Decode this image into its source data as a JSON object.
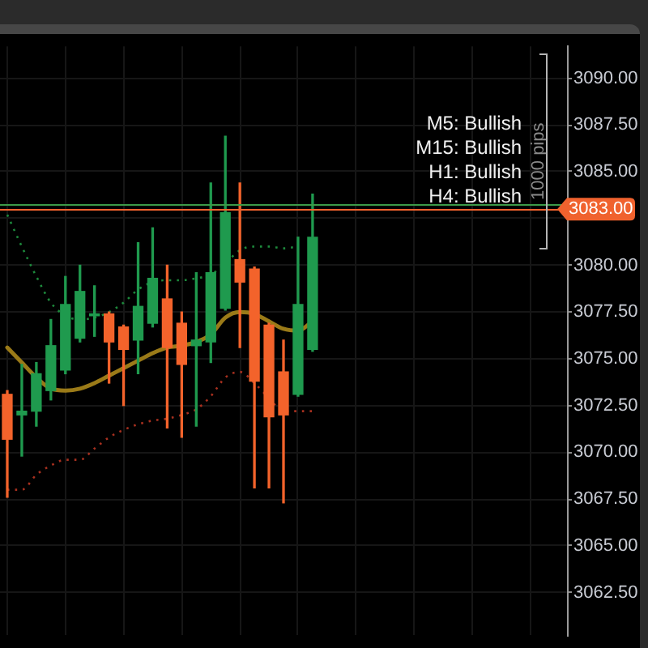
{
  "chart_data": {
    "type": "candlestick",
    "categories": [
      null,
      null,
      null,
      null,
      null,
      null,
      null,
      null,
      null,
      null,
      null,
      null,
      null,
      null,
      null,
      null,
      null,
      null,
      null,
      null,
      null,
      null,
      null,
      null,
      null,
      null,
      null,
      null,
      null,
      null,
      null,
      null,
      null,
      null,
      null,
      null,
      null,
      null,
      null
    ],
    "ohlc": [
      [
        3073.1,
        3073.3,
        3067.6,
        3070.7
      ],
      [
        3072.0,
        3074.7,
        3069.8,
        3072.2
      ],
      [
        3072.2,
        3074.8,
        3071.4,
        3074.2
      ],
      [
        3073.3,
        3077.1,
        3072.8,
        3075.7
      ],
      [
        3074.4,
        3079.4,
        3074.2,
        3077.9
      ],
      [
        3076.1,
        3080.0,
        3075.9,
        3078.6
      ],
      [
        3077.3,
        3078.9,
        3076.2,
        3077.4
      ],
      [
        3077.4,
        3077.5,
        3073.7,
        3075.9
      ],
      [
        3076.7,
        3076.8,
        3072.5,
        3075.5
      ],
      [
        3076.0,
        3081.2,
        3074.2,
        3077.8
      ],
      [
        3076.9,
        3082.0,
        3076.7,
        3079.3
      ],
      [
        3078.2,
        3080.0,
        3071.3,
        3075.6
      ],
      [
        3076.9,
        3077.5,
        3070.8,
        3074.7
      ],
      [
        3075.7,
        3079.6,
        3071.4,
        3076.0
      ],
      [
        3075.9,
        3084.4,
        3074.8,
        3079.6
      ],
      [
        3077.7,
        3086.9,
        3077.6,
        3082.8
      ],
      [
        3080.3,
        3084.4,
        3075.6,
        3079.1
      ],
      [
        3079.8,
        3079.9,
        3068.1,
        3073.8
      ],
      [
        3076.8,
        3076.9,
        3068.1,
        3071.9
      ],
      [
        3074.3,
        3076.0,
        3067.3,
        3072.0
      ],
      [
        3073.1,
        3081.5,
        3073.0,
        3077.9
      ],
      [
        3075.5,
        3083.8,
        3075.4,
        3081.5
      ],
      null,
      null,
      null,
      null,
      null,
      null,
      null,
      null,
      null,
      null,
      null,
      null,
      null,
      null,
      null,
      null,
      null
    ],
    "colors": [
      "#f3632b",
      "#1f9a4e",
      "#1f9a4e",
      "#1f9a4e",
      "#1f9a4e",
      "#1f9a4e",
      "#1f9a4e",
      "#f3632b",
      "#f3632b",
      "#1f9a4e",
      "#1f9a4e",
      "#f3632b",
      "#f3632b",
      "#1f9a4e",
      "#1f9a4e",
      "#1f9a4e",
      "#f3632b",
      "#f3632b",
      "#f3632b",
      "#f3632b",
      "#1f9a4e",
      "#1f9a4e",
      null,
      null,
      null,
      null,
      null,
      null,
      null,
      null,
      null,
      null,
      null,
      null,
      null,
      null,
      null,
      null,
      null
    ],
    "series": [
      {
        "type": "line",
        "color": "#9a7a18",
        "line_style": "solid",
        "values": [
          3075.6,
          3074.8,
          3074.0,
          3073.4,
          3073.3,
          3073.4,
          3073.7,
          3074.1,
          3074.5,
          3074.9,
          3075.3,
          3075.6,
          3075.7,
          3075.9,
          3076.3,
          3077.2,
          3077.5,
          3077.4,
          3077.0,
          3076.6,
          3076.5,
          3077.0,
          null,
          null,
          null,
          null,
          null,
          null,
          null,
          null,
          null,
          null,
          null,
          null,
          null,
          null,
          null,
          null,
          null
        ]
      },
      {
        "type": "line",
        "color": "#1d8a3c",
        "line_style": "dotted",
        "values": [
          3082.7,
          3081.0,
          3079.4,
          3078.0,
          3077.3,
          3077.1,
          3077.2,
          3077.5,
          3078.0,
          3078.7,
          3079.1,
          3079.2,
          3079.2,
          3079.3,
          3079.5,
          3080.1,
          3080.8,
          3081.0,
          3081.0,
          3080.9,
          3081.0,
          null,
          null,
          null,
          null,
          null,
          null,
          null,
          null,
          null,
          null,
          null,
          null,
          null,
          null,
          null,
          null,
          null,
          null
        ]
      },
      {
        "type": "line",
        "color": "#a8301f",
        "line_style": "dotted",
        "values": [
          3068.0,
          3068.0,
          3068.8,
          3069.3,
          3069.6,
          3069.6,
          3070.2,
          3070.8,
          3071.2,
          3071.5,
          3071.7,
          3071.8,
          3072.0,
          3072.3,
          3073.0,
          3074.0,
          3074.3,
          3073.7,
          3072.9,
          3072.2,
          3072.2,
          3072.2,
          null,
          null,
          null,
          null,
          null,
          null,
          null,
          null,
          null,
          null,
          null,
          null,
          null,
          null,
          null,
          null,
          null
        ]
      }
    ],
    "ylim": [
      3060.2,
      3091.7
    ],
    "yticks": [
      {
        "value": 3062.5,
        "label": "3062.50"
      },
      {
        "value": 3065,
        "label": "3065.00"
      },
      {
        "value": 3067.5,
        "label": "3067.50"
      },
      {
        "value": 3070,
        "label": "3070.00"
      },
      {
        "value": 3072.5,
        "label": "3072.50"
      },
      {
        "value": 3075,
        "label": "3075.00"
      },
      {
        "value": 3077.5,
        "label": "3077.50"
      },
      {
        "value": 3080,
        "label": "3080.00"
      },
      {
        "value": 3082.5,
        "label": null
      },
      {
        "value": 3085,
        "label": "3085.00"
      },
      {
        "value": 3087.5,
        "label": "3087.50"
      },
      {
        "value": 3090,
        "label": "3090.00"
      }
    ],
    "ref_lines": [
      {
        "axis": "y",
        "value": 3083.3,
        "color": "#3c9a48"
      },
      {
        "axis": "y",
        "value": 3083,
        "label": "3083.00",
        "color": "#f0622e"
      }
    ],
    "annotations": [
      "M5: Bullish",
      "M15: Bullish",
      "H1: Bullish",
      "H4: Bullish",
      "1000 pips"
    ],
    "grid": true,
    "legend": false,
    "tick_labels": "y",
    "marker": "none"
  }
}
